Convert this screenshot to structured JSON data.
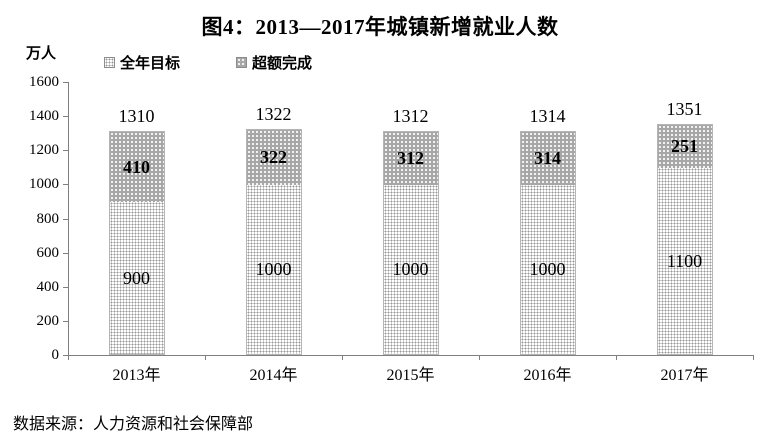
{
  "title": "图4：2013—2017年城镇新增就业人数",
  "y_unit": "万人",
  "legend": [
    {
      "label": "全年目标",
      "swatch": "light-dot-pattern"
    },
    {
      "label": "超额完成",
      "swatch": "dark-dot-pattern"
    }
  ],
  "source": "数据来源：人力资源和社会保障部",
  "chart_data": {
    "type": "bar",
    "stacked": true,
    "title": "图4：2013—2017年城镇新增就业人数",
    "ylabel": "万人",
    "categories": [
      "2013年",
      "2014年",
      "2015年",
      "2016年",
      "2017年"
    ],
    "series": [
      {
        "name": "全年目标",
        "values": [
          900,
          1000,
          1000,
          1000,
          1100
        ]
      },
      {
        "name": "超额完成",
        "values": [
          410,
          322,
          312,
          314,
          251
        ]
      }
    ],
    "totals": [
      1310,
      1322,
      1312,
      1314,
      1351
    ],
    "ylim": [
      0,
      1600
    ],
    "ytick_step": 200,
    "grid": false,
    "legend_position": "top-left"
  },
  "colors": {
    "target_fill": "#ffffff",
    "target_dot": "#989898",
    "excess_fill": "#a7a7a7",
    "excess_dot": "#ffffff",
    "axis": "#7f7f7f",
    "text": "#000000"
  }
}
